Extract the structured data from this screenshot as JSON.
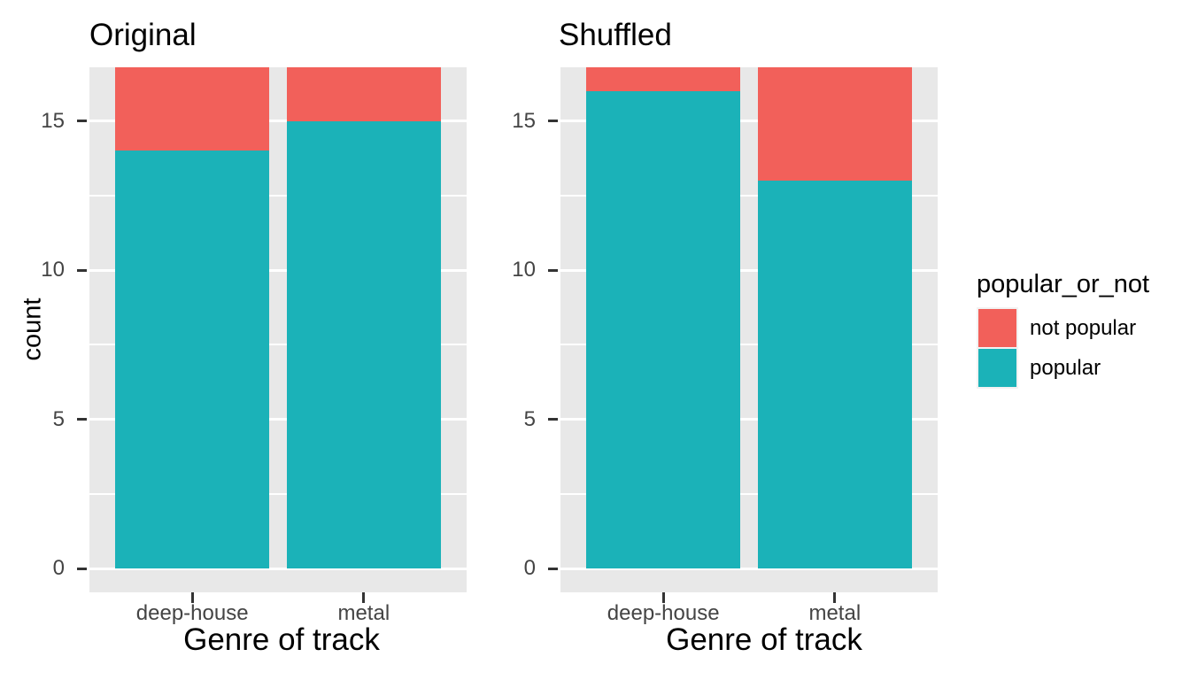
{
  "styles": {
    "background": "#FFFFFF",
    "panel_background": "#E8E8E8",
    "grid_color": "#FFFFFF",
    "tick_mark_color": "#333333",
    "tick_label_color": "#444444",
    "title_color": "#000000",
    "color_not_popular": "#F2605A",
    "color_popular": "#1BB2B8"
  },
  "legend": {
    "position": "right",
    "title": "popular_or_not",
    "items": [
      {
        "label": "not popular",
        "color": "#F2605A"
      },
      {
        "label": "popular",
        "color": "#1BB2B8"
      }
    ]
  },
  "chart_data": [
    {
      "type": "bar",
      "stacked": true,
      "title": "Original",
      "xlabel": "Genre of track",
      "ylabel": "count",
      "categories": [
        "deep-house",
        "metal"
      ],
      "series": [
        {
          "name": "popular",
          "color": "#1BB2B8",
          "values": [
            14,
            15
          ]
        },
        {
          "name": "not popular",
          "color": "#F2605A",
          "values": [
            3,
            2
          ]
        }
      ],
      "bar_totals": [
        17,
        17
      ],
      "yticks": [
        0,
        5,
        10,
        15
      ],
      "yticks_minor": [
        2.5,
        7.5,
        12.5
      ],
      "ylim_display": [
        -0.8,
        16.8
      ],
      "grid": true,
      "legend_shown": false
    },
    {
      "type": "bar",
      "stacked": true,
      "title": "Shuffled",
      "xlabel": "Genre of track",
      "ylabel": "",
      "categories": [
        "deep-house",
        "metal"
      ],
      "series": [
        {
          "name": "popular",
          "color": "#1BB2B8",
          "values": [
            16,
            13
          ]
        },
        {
          "name": "not popular",
          "color": "#F2605A",
          "values": [
            1,
            4
          ]
        }
      ],
      "bar_totals": [
        17,
        17
      ],
      "yticks": [
        0,
        5,
        10,
        15
      ],
      "yticks_minor": [
        2.5,
        7.5,
        12.5
      ],
      "ylim_display": [
        -0.8,
        16.8
      ],
      "grid": true,
      "legend_shown": true
    }
  ]
}
